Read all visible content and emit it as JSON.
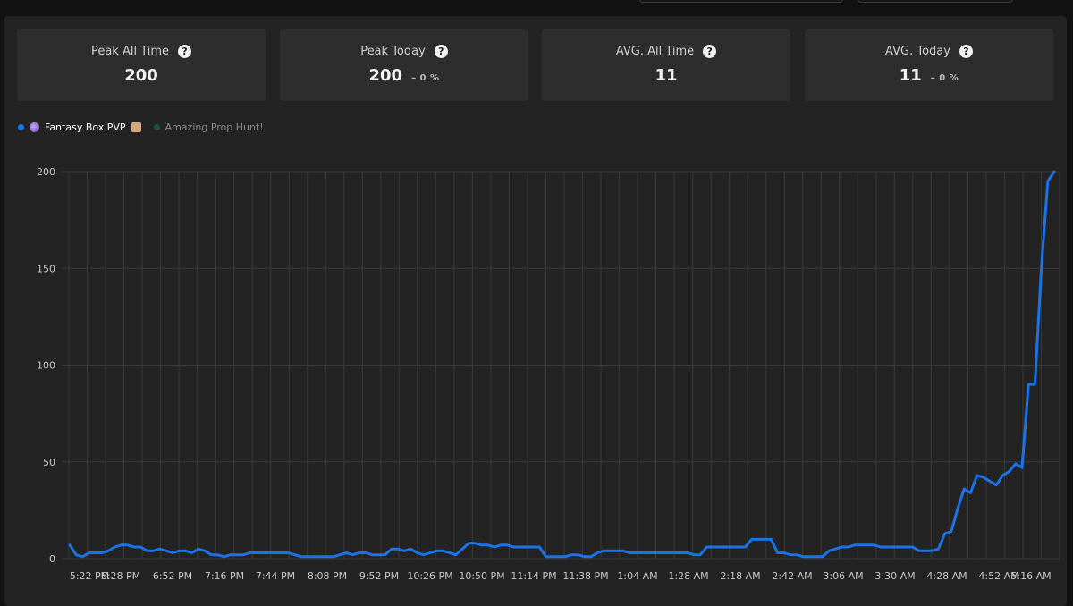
{
  "stats": [
    {
      "title": "Peak All Time",
      "value": "200",
      "change": ""
    },
    {
      "title": "Peak Today",
      "value": "200",
      "change": "– 0 %"
    },
    {
      "title": "AVG. All Time",
      "value": "11",
      "change": ""
    },
    {
      "title": "AVG. Today",
      "value": "11",
      "change": "– 0 %"
    }
  ],
  "help_icon_glyph": "?",
  "legend": [
    {
      "label": "Fantasy Box PVP",
      "color": "#1a73e8",
      "active": true
    },
    {
      "label": "Amazing Prop Hunt!",
      "color": "#1e5631",
      "active": false
    }
  ],
  "colors": {
    "series_line": "#1a73e8",
    "grid": "#3a3a3a",
    "panel": "#232323"
  },
  "chart_data": {
    "type": "line",
    "x_tick_labels": [
      "5:22 PM",
      "6:28 PM",
      "6:52 PM",
      "7:16 PM",
      "7:44 PM",
      "8:08 PM",
      "9:52 PM",
      "10:26 PM",
      "10:50 PM",
      "11:14 PM",
      "11:38 PM",
      "1:04 AM",
      "1:28 AM",
      "2:18 AM",
      "2:42 AM",
      "3:06 AM",
      "3:30 AM",
      "4:28 AM",
      "4:52 AM",
      "5:16 AM"
    ],
    "y_ticks": [
      0,
      50,
      100,
      150,
      200
    ],
    "ylim": [
      0,
      200
    ],
    "grid": true,
    "legend_position": "top-left",
    "series": [
      {
        "name": "Fantasy Box PVP",
        "values": [
          7,
          2,
          1,
          3,
          3,
          3,
          4,
          6,
          7,
          7,
          6,
          6,
          4,
          4,
          5,
          4,
          3,
          4,
          4,
          3,
          5,
          4,
          2,
          2,
          1,
          2,
          2,
          2,
          3,
          3,
          3,
          3,
          3,
          3,
          3,
          2,
          1,
          1,
          1,
          1,
          1,
          1,
          2,
          3,
          2,
          3,
          3,
          2,
          2,
          2,
          5,
          5,
          4,
          5,
          3,
          2,
          3,
          4,
          4,
          3,
          2,
          5,
          8,
          8,
          7,
          7,
          6,
          7,
          7,
          6,
          6,
          6,
          6,
          6,
          1,
          1,
          1,
          1,
          2,
          2,
          1,
          1,
          3,
          4,
          4,
          4,
          4,
          3,
          3,
          3,
          3,
          3,
          3,
          3,
          3,
          3,
          3,
          2,
          2,
          6,
          6,
          6,
          6,
          6,
          6,
          6,
          10,
          10,
          10,
          10,
          3,
          3,
          2,
          2,
          1,
          1,
          1,
          1,
          4,
          5,
          6,
          6,
          7,
          7,
          7,
          7,
          6,
          6,
          6,
          6,
          6,
          6,
          4,
          4,
          4,
          5,
          13,
          14,
          26,
          36,
          34,
          43,
          42,
          40,
          38,
          43,
          45,
          49,
          47,
          90,
          90,
          150,
          195,
          200
        ]
      },
      {
        "name": "Amazing Prop Hunt!",
        "values": []
      }
    ]
  }
}
